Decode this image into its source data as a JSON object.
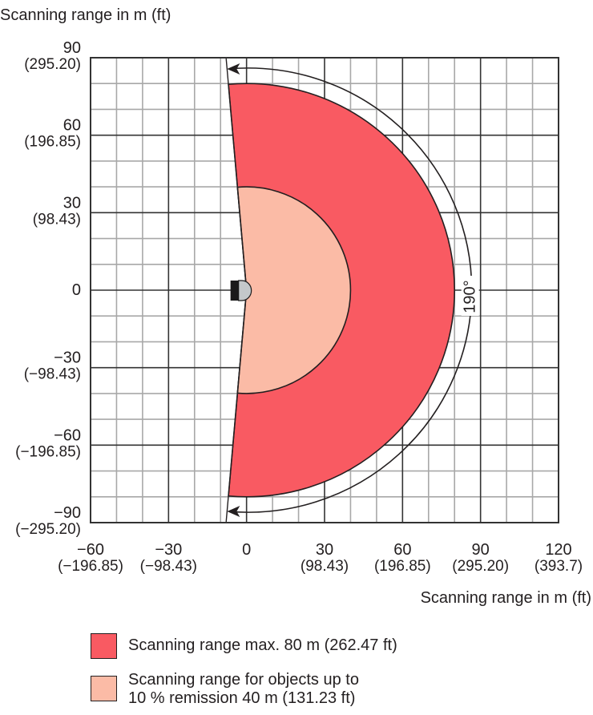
{
  "chart_data": {
    "type": "polar-sector-diagram",
    "ylabel": "Scanning range in m (ft)",
    "xlabel": "Scanning range in m (ft)",
    "xlim": [
      -60,
      120
    ],
    "ylim": [
      -90,
      90
    ],
    "minor_grid_step": 10,
    "major_grid_step": 30,
    "x_ticks": [
      {
        "value": -60,
        "label": "−60",
        "sub": "(−196.85)"
      },
      {
        "value": -30,
        "label": "−30",
        "sub": "(−98.43)"
      },
      {
        "value": 0,
        "label": "0",
        "sub": ""
      },
      {
        "value": 30,
        "label": "30",
        "sub": "(98.43)"
      },
      {
        "value": 60,
        "label": "60",
        "sub": "(196.85)"
      },
      {
        "value": 90,
        "label": "90",
        "sub": "(295.20)"
      },
      {
        "value": 120,
        "label": "120",
        "sub": "(393.7)"
      }
    ],
    "y_ticks": [
      {
        "value": 90,
        "label": "90",
        "sub": "(295.20)"
      },
      {
        "value": 60,
        "label": "60",
        "sub": "(196.85)"
      },
      {
        "value": 30,
        "label": "30",
        "sub": "(98.43)"
      },
      {
        "value": 0,
        "label": "0",
        "sub": ""
      },
      {
        "value": -30,
        "label": "−30",
        "sub": "(−98.43)"
      },
      {
        "value": -60,
        "label": "−60",
        "sub": "(−196.85)"
      },
      {
        "value": -90,
        "label": "−90",
        "sub": "(−295.20)"
      }
    ],
    "series": [
      {
        "name": "Scanning range max. 80 m (262.47 ft)",
        "radius_m": 80,
        "angle_deg": 190,
        "color": "#f95a62"
      },
      {
        "name": "Scanning range for objects up to 10 % remission 40 m (131.23 ft)",
        "radius_m": 40,
        "angle_deg": 190,
        "color": "#fbbba6"
      }
    ],
    "annotation": {
      "label": "190°",
      "angle_deg": 190
    }
  },
  "legend": {
    "items": [
      {
        "lines": [
          "Scanning range max. 80 m (262.47 ft)"
        ],
        "color": "#f95a62"
      },
      {
        "lines": [
          "Scanning range for objects up to",
          "10 % remission 40 m (131.23 ft)"
        ],
        "color": "#fbbba6"
      }
    ]
  }
}
